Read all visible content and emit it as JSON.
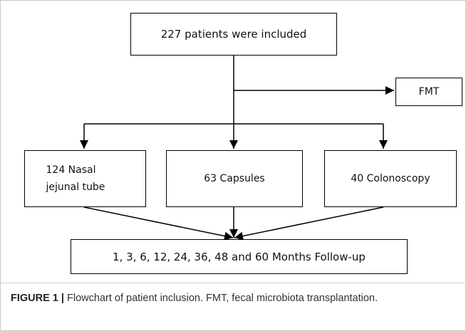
{
  "nodes": [
    {
      "label": "227 patients were included"
    },
    {
      "label": "FMT"
    },
    {
      "label": "124 Nasal jejunal tube"
    },
    {
      "label": "63 Capsules"
    },
    {
      "label": "40 Colonoscopy"
    },
    {
      "label": "1, 3, 6, 12, 24, 36, 48 and 60 Months Follow-up"
    }
  ],
  "caption": {
    "label": "FIGURE 1 |",
    "text": "Flowchart of patient inclusion. FMT, fecal microbiota transplantation."
  }
}
